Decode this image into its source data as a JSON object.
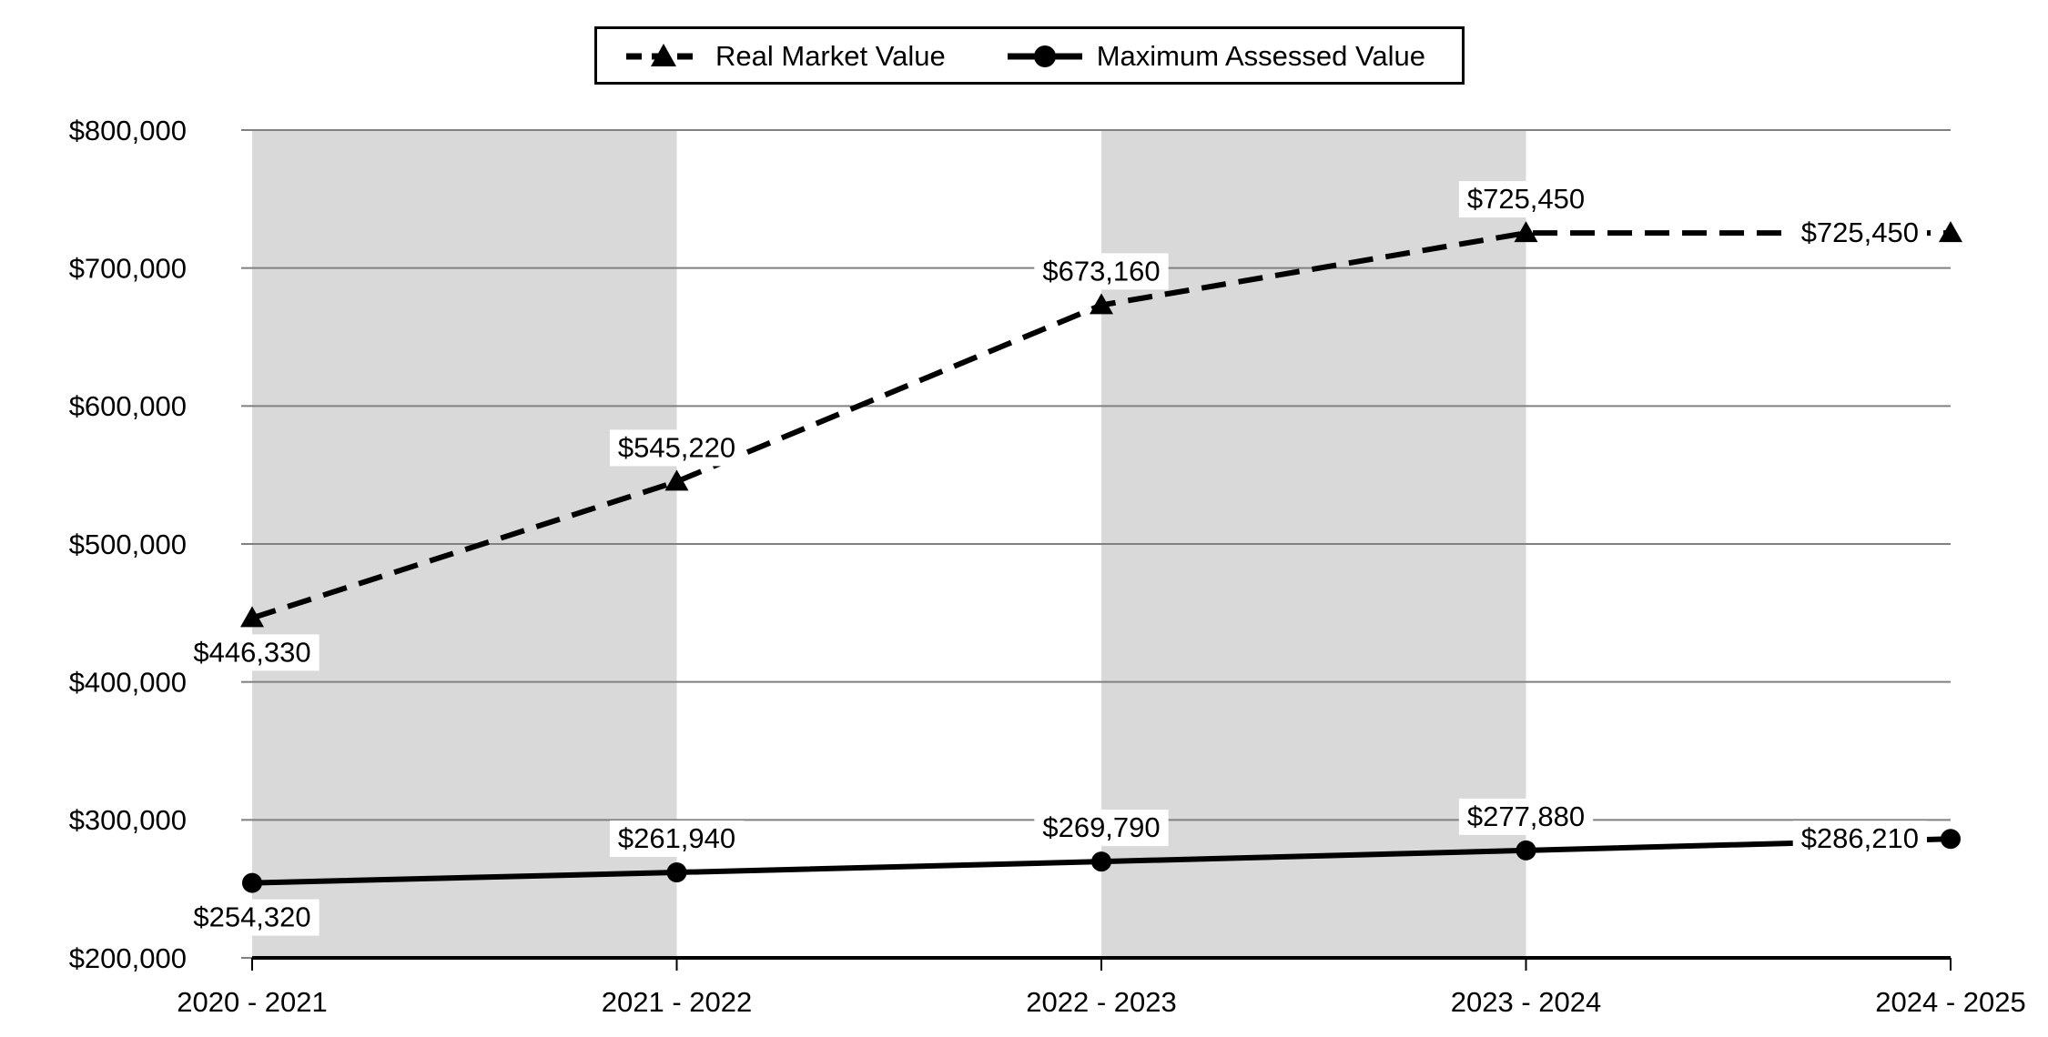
{
  "page": {
    "background": "#ffffff"
  },
  "legend": {
    "items": [
      {
        "label": "Real Market Value",
        "marker": "triangle",
        "line_style": "dashed"
      },
      {
        "label": "Maximum Assessed Value",
        "marker": "circle",
        "line_style": "solid"
      }
    ]
  },
  "chart_data": {
    "type": "line",
    "title": "",
    "xlabel": "",
    "ylabel": "",
    "categories": [
      "2020 - 2021",
      "2021 - 2022",
      "2022 - 2023",
      "2023 - 2024",
      "2024 - 2025"
    ],
    "series": [
      {
        "name": "Real Market Value",
        "values": [
          446330,
          545220,
          673160,
          725450,
          725450
        ],
        "data_labels": [
          "$446,330",
          "$545,220",
          "$673,160",
          "$725,450",
          "$725,450"
        ],
        "label_positions": [
          "below",
          "above",
          "above",
          "above",
          "left"
        ],
        "line_style": "dashed",
        "marker": "triangle",
        "color": "#000000"
      },
      {
        "name": "Maximum Assessed Value",
        "values": [
          254320,
          261940,
          269790,
          277880,
          286210
        ],
        "data_labels": [
          "$254,320",
          "$261,940",
          "$269,790",
          "$277,880",
          "$286,210"
        ],
        "label_positions": [
          "below",
          "above",
          "above",
          "above",
          "left"
        ],
        "line_style": "solid",
        "marker": "circle",
        "color": "#000000"
      }
    ],
    "ylim": [
      200000,
      800000
    ],
    "ytick_step": 100000,
    "ytick_labels": [
      "$200,000",
      "$300,000",
      "$400,000",
      "$500,000",
      "$600,000",
      "$700,000",
      "$800,000"
    ],
    "grid": true,
    "legend_position": "top-center",
    "plot_bands": {
      "color": "#d9d9d9",
      "category_spans": [
        [
          0,
          1
        ],
        [
          2,
          3
        ]
      ]
    },
    "colors": {
      "gridline": "#808080",
      "axis": "#000000",
      "band": "#d9d9d9",
      "text": "#000000",
      "label_background": "#ffffff",
      "page_background": "#ffffff"
    }
  }
}
